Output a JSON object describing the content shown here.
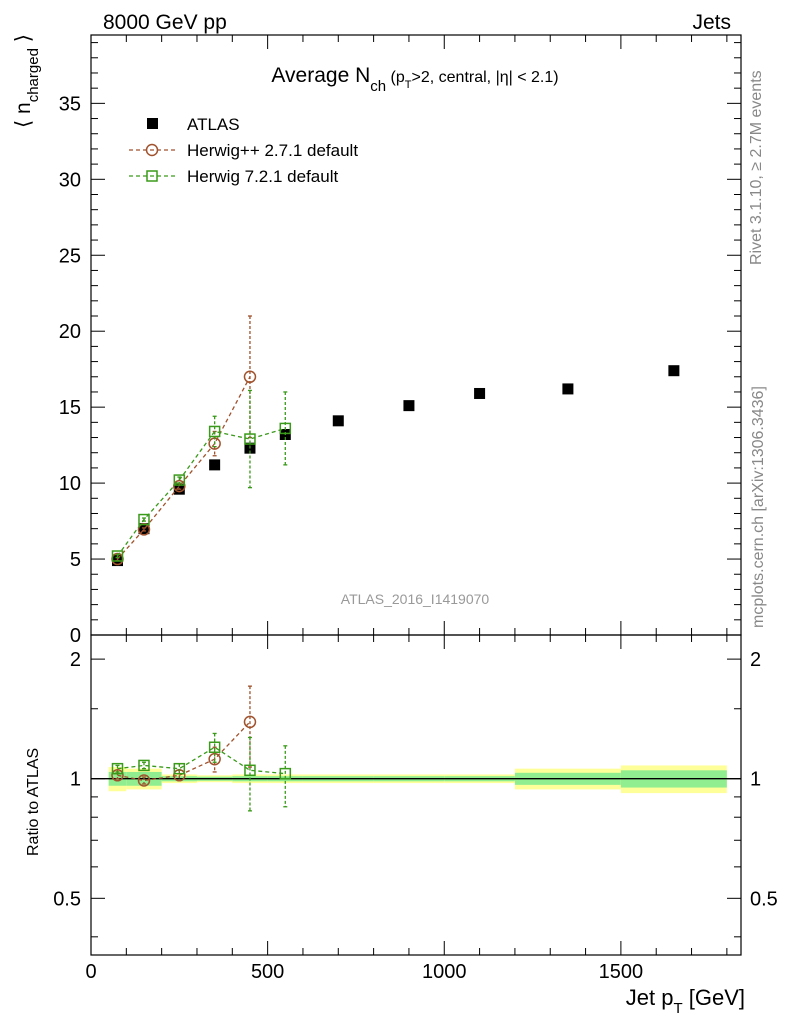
{
  "header": {
    "left": "8000 GeV pp",
    "right": "Jets"
  },
  "side_labels": {
    "rivet": "Rivet 3.1.10, ≥ 2.7M events",
    "mcplots": "mcplots.cern.ch [arXiv:1306.3436]"
  },
  "analysis_tag": "ATLAS_2016_I1419070",
  "chart_data": {
    "type": "scatter",
    "title": {
      "main": "Average N",
      "sub": "ch",
      "rest": " (p",
      "sub2": "T",
      "rest2": ">2, central, |η| < 2.1)"
    },
    "ylabel_main": {
      "main": "⟨ n",
      "sub": "charged",
      "close": " ⟩"
    },
    "ylabel_ratio": "Ratio to ATLAS",
    "xlabel": {
      "main": "Jet p",
      "sub": "T",
      "rest": " [GeV]"
    },
    "xlim": [
      0,
      1840
    ],
    "ylim_main": [
      0,
      39.5
    ],
    "ylim_ratio": [
      0.36,
      2.3
    ],
    "x_ticks": [
      0,
      500,
      1000,
      1500
    ],
    "x_tick_labels": [
      "0",
      "500",
      "1000",
      "1500"
    ],
    "y_ticks_main": [
      0,
      5,
      10,
      15,
      20,
      25,
      30,
      35
    ],
    "y_tick_labels_main": [
      "0",
      "5",
      "10",
      "15",
      "20",
      "25",
      "30",
      "35"
    ],
    "y_ticks_ratio": [
      0.5,
      1,
      2
    ],
    "y_tick_labels_ratio": [
      "0.5",
      "1",
      "2"
    ],
    "colors": {
      "data": "#000000",
      "herwigpp": "#a0522d",
      "herwig7": "#3a9a1a",
      "band_inner": "#90ee90",
      "band_outer": "#ffff99"
    },
    "legend": [
      "ATLAS",
      "Herwig++ 2.7.1 default",
      "Herwig 7.2.1 default"
    ],
    "series": [
      {
        "name": "ATLAS",
        "x": [
          75,
          150,
          250,
          350,
          450,
          550,
          700,
          900,
          1100,
          1350,
          1650
        ],
        "xlow": [
          50,
          100,
          200,
          300,
          400,
          500,
          600,
          800,
          1000,
          1200,
          1500
        ],
        "xhigh": [
          100,
          200,
          300,
          400,
          500,
          600,
          800,
          1000,
          1200,
          1500,
          1800
        ],
        "y": [
          4.9,
          7.0,
          9.6,
          11.2,
          12.3,
          13.2,
          14.1,
          15.1,
          15.9,
          16.2,
          17.4
        ],
        "ratio_band_inner": [
          0.04,
          0.04,
          0.015,
          0.012,
          0.015,
          0.015,
          0.015,
          0.015,
          0.015,
          0.035,
          0.05
        ],
        "ratio_band_outer": [
          0.07,
          0.06,
          0.025,
          0.02,
          0.025,
          0.025,
          0.025,
          0.025,
          0.025,
          0.06,
          0.08
        ]
      },
      {
        "name": "Herwig++ 2.7.1 default",
        "x": [
          75,
          150,
          250,
          350,
          450
        ],
        "y": [
          5.0,
          6.95,
          9.8,
          12.6,
          17.0
        ],
        "yerr": [
          0.1,
          0.1,
          0.2,
          0.8,
          4.0
        ],
        "ratio": [
          1.02,
          0.99,
          1.02,
          1.12,
          1.39
        ],
        "ratio_err": [
          0.02,
          0.02,
          0.03,
          0.08,
          0.32
        ]
      },
      {
        "name": "Herwig 7.2.1 default",
        "x": [
          75,
          150,
          250,
          350,
          450,
          550
        ],
        "y": [
          5.2,
          7.6,
          10.2,
          13.4,
          12.9,
          13.6
        ],
        "yerr": [
          0.1,
          0.1,
          0.2,
          1.0,
          3.2,
          2.4
        ],
        "ratio": [
          1.06,
          1.08,
          1.06,
          1.2,
          1.05,
          1.03
        ],
        "ratio_err": [
          0.02,
          0.02,
          0.03,
          0.1,
          0.22,
          0.18
        ]
      }
    ]
  }
}
